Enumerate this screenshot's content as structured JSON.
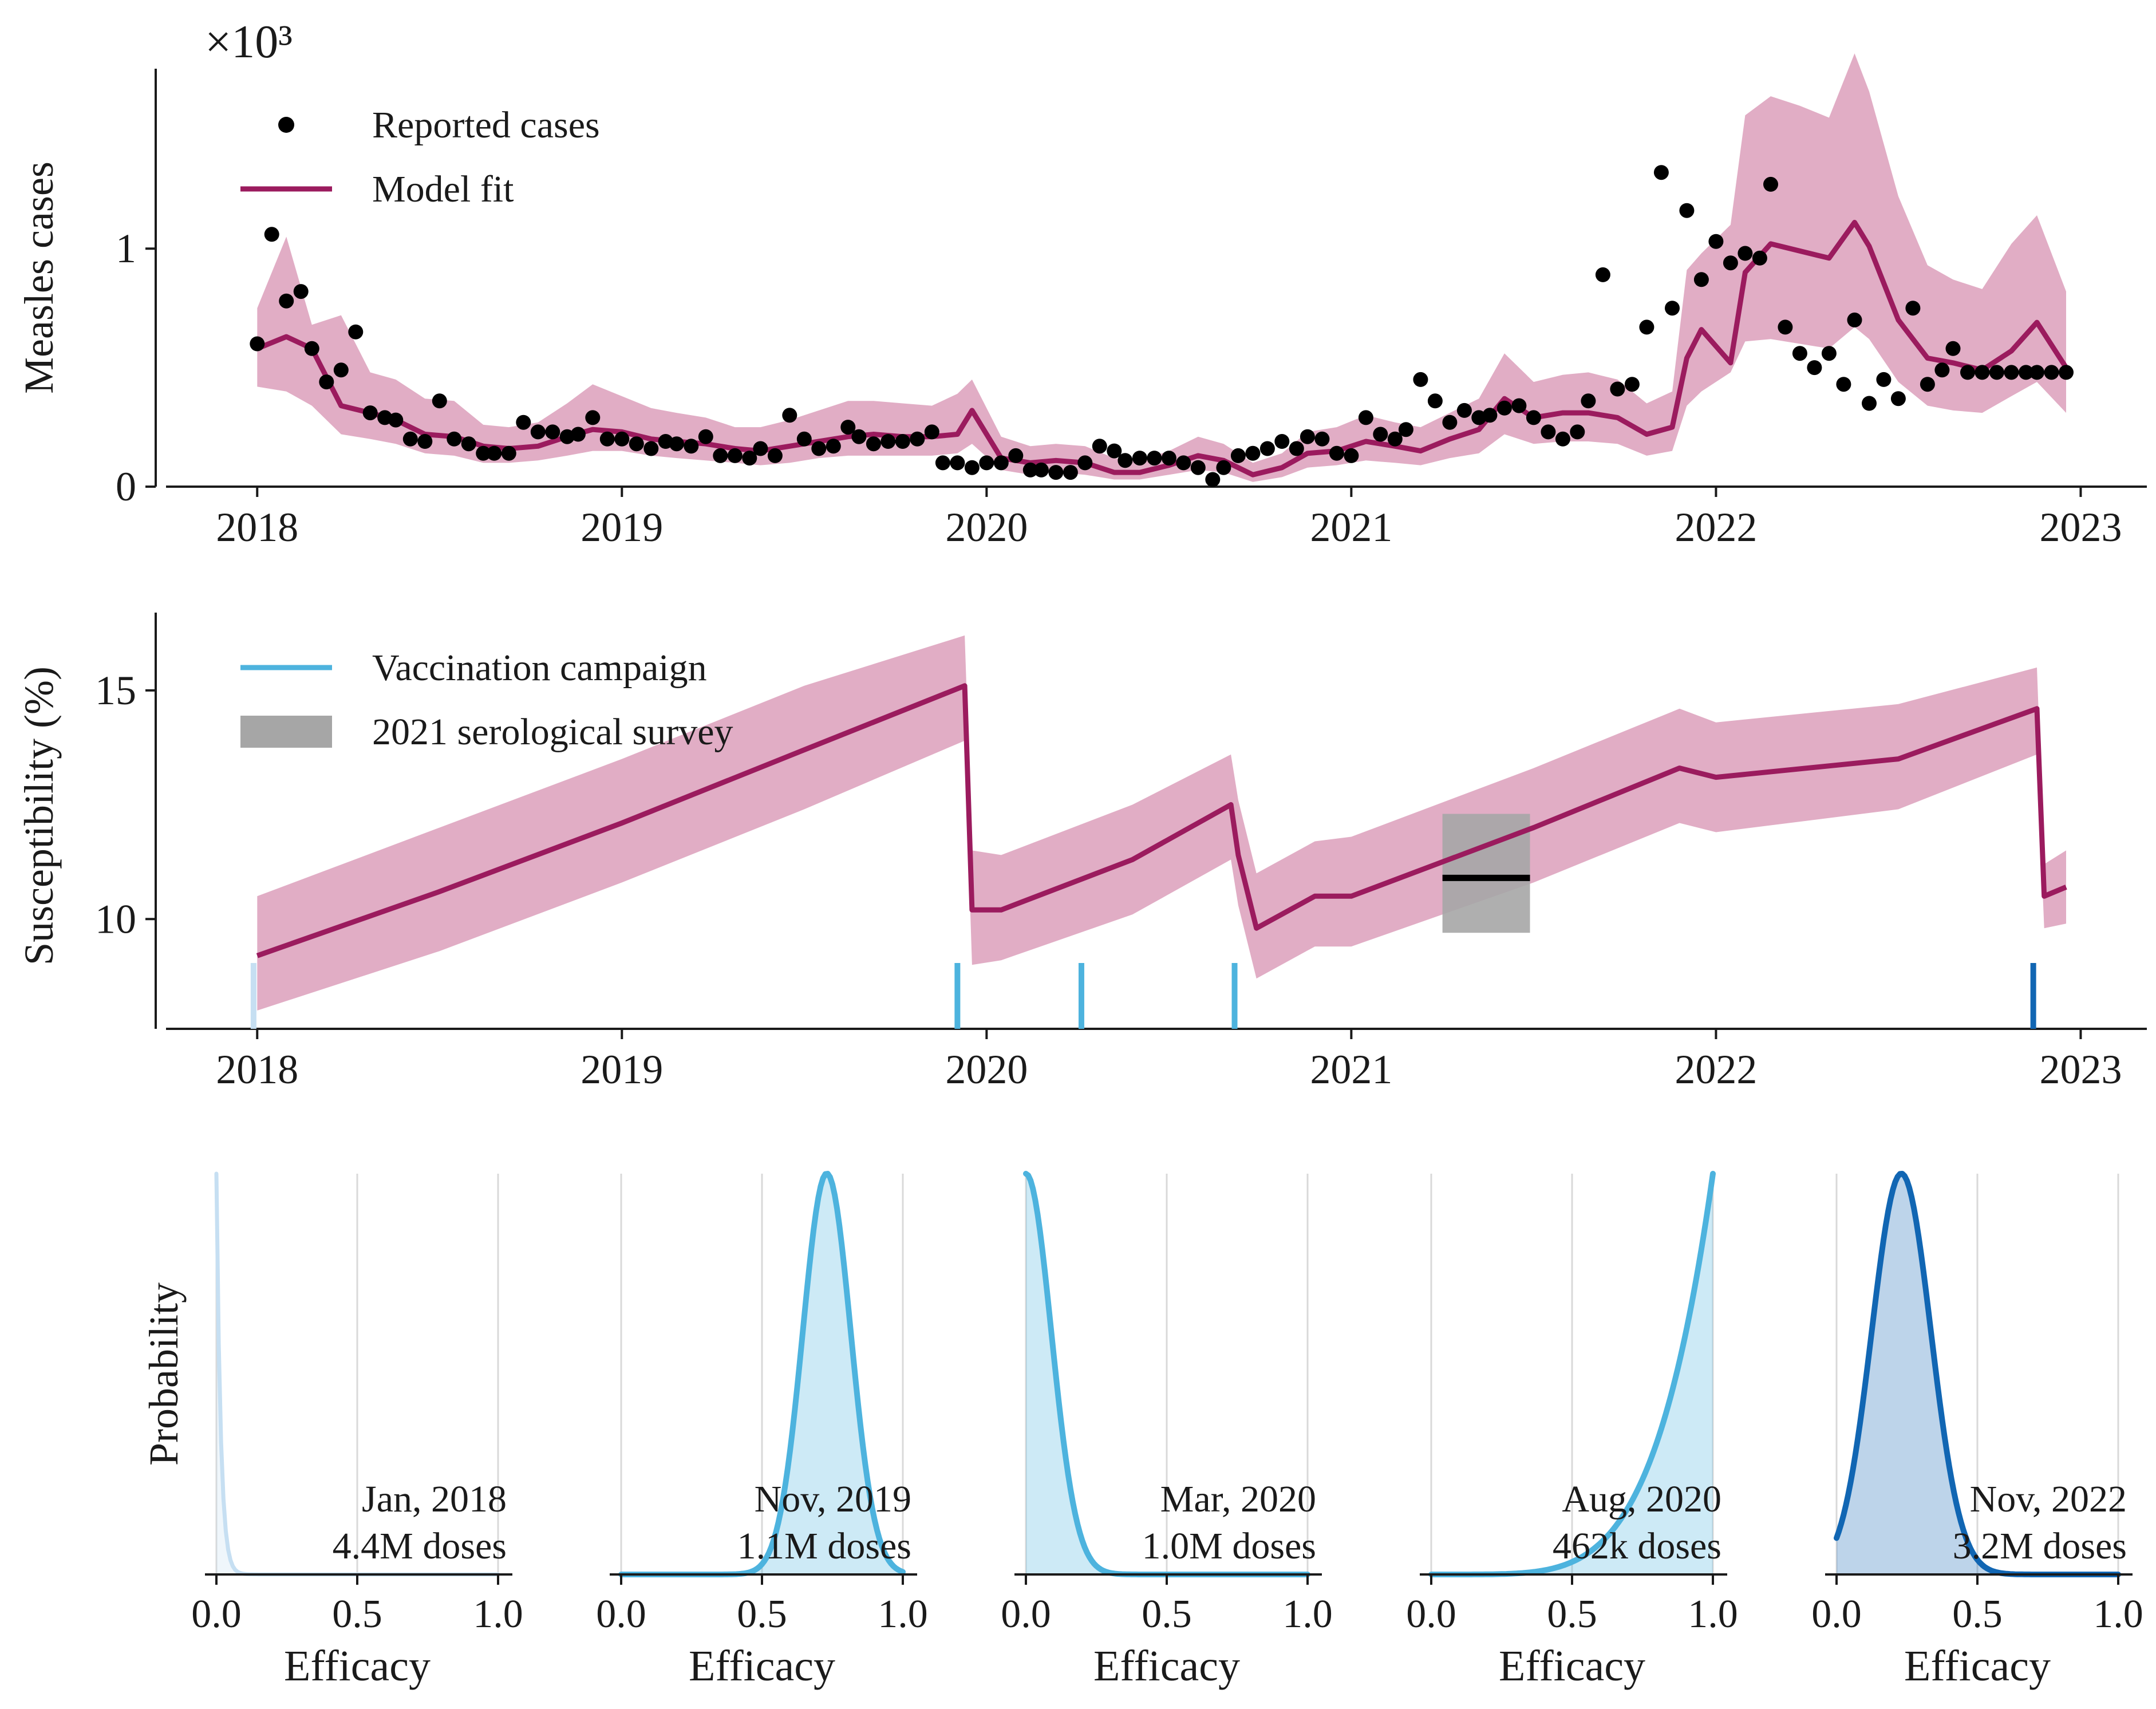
{
  "colors": {
    "model": "#9b1b5e",
    "band": "#dfa9c2",
    "dots": "#000000",
    "camp_light": "#c6dff2",
    "camp_mid": "#4db3de",
    "camp_dark": "#1166b3",
    "sero_box": "#a6a6a6",
    "axis": "#1a1a1a",
    "grid": "#d9d9d9"
  },
  "chart_data": [
    {
      "type": "line",
      "panel": "cases",
      "ylabel": "Measles cases",
      "y_multiplier": "×10³",
      "ylim": [
        0,
        1.9
      ],
      "xlim": [
        2017.75,
        2023.15
      ],
      "x_ticks": [
        2018,
        2019,
        2020,
        2021,
        2022,
        2023
      ],
      "x_tick_labels": [
        "2018",
        "2019",
        "2020",
        "2021",
        "2022",
        "2023"
      ],
      "y_ticks": [
        0,
        1
      ],
      "y_tick_labels": [
        "0",
        "1"
      ],
      "legend": {
        "position": "top-left",
        "entries": [
          "Reported cases",
          "Model fit"
        ]
      },
      "series": [
        {
          "name": "Reported cases",
          "kind": "scatter",
          "x": [
            2018.0,
            2018.04,
            2018.08,
            2018.12,
            2018.15,
            2018.19,
            2018.23,
            2018.27,
            2018.31,
            2018.35,
            2018.38,
            2018.42,
            2018.46,
            2018.5,
            2018.54,
            2018.58,
            2018.62,
            2018.65,
            2018.69,
            2018.73,
            2018.77,
            2018.81,
            2018.85,
            2018.88,
            2018.92,
            2018.96,
            2019.0,
            2019.04,
            2019.08,
            2019.12,
            2019.15,
            2019.19,
            2019.23,
            2019.27,
            2019.31,
            2019.35,
            2019.38,
            2019.42,
            2019.46,
            2019.5,
            2019.54,
            2019.58,
            2019.62,
            2019.65,
            2019.69,
            2019.73,
            2019.77,
            2019.81,
            2019.85,
            2019.88,
            2019.92,
            2019.96,
            2020.0,
            2020.04,
            2020.08,
            2020.12,
            2020.15,
            2020.19,
            2020.23,
            2020.27,
            2020.31,
            2020.35,
            2020.38,
            2020.42,
            2020.46,
            2020.5,
            2020.54,
            2020.58,
            2020.62,
            2020.65,
            2020.69,
            2020.73,
            2020.77,
            2020.81,
            2020.85,
            2020.88,
            2020.92,
            2020.96,
            2021.0,
            2021.04,
            2021.08,
            2021.12,
            2021.15,
            2021.19,
            2021.23,
            2021.27,
            2021.31,
            2021.35,
            2021.38,
            2021.42,
            2021.46,
            2021.5,
            2021.54,
            2021.58,
            2021.62,
            2021.65,
            2021.69,
            2021.73,
            2021.77,
            2021.81,
            2021.85,
            2021.88,
            2021.92,
            2021.96,
            2022.0,
            2022.04,
            2022.08,
            2022.12,
            2022.15,
            2022.19,
            2022.23,
            2022.27,
            2022.31,
            2022.35,
            2022.38,
            2022.42,
            2022.46,
            2022.5,
            2022.54,
            2022.58,
            2022.62,
            2022.65,
            2022.69,
            2022.73,
            2022.77,
            2022.81,
            2022.85,
            2022.88,
            2022.92,
            2022.96
          ],
          "y": [
            0.6,
            1.06,
            0.78,
            0.82,
            0.58,
            0.44,
            0.49,
            0.65,
            0.31,
            0.29,
            0.28,
            0.2,
            0.19,
            0.36,
            0.2,
            0.18,
            0.14,
            0.14,
            0.14,
            0.27,
            0.23,
            0.23,
            0.21,
            0.22,
            0.29,
            0.2,
            0.2,
            0.18,
            0.16,
            0.19,
            0.18,
            0.17,
            0.21,
            0.13,
            0.13,
            0.12,
            0.16,
            0.13,
            0.3,
            0.2,
            0.16,
            0.17,
            0.25,
            0.21,
            0.18,
            0.19,
            0.19,
            0.2,
            0.23,
            0.1,
            0.1,
            0.08,
            0.1,
            0.1,
            0.13,
            0.07,
            0.07,
            0.06,
            0.06,
            0.1,
            0.17,
            0.15,
            0.11,
            0.12,
            0.12,
            0.12,
            0.1,
            0.08,
            0.03,
            0.08,
            0.13,
            0.14,
            0.16,
            0.19,
            0.16,
            0.21,
            0.2,
            0.14,
            0.13,
            0.29,
            0.22,
            0.2,
            0.24,
            0.45,
            0.36,
            0.27,
            0.32,
            0.29,
            0.3,
            0.33,
            0.34,
            0.29,
            0.23,
            0.2,
            0.23,
            0.36,
            0.89,
            0.41,
            0.43,
            0.67,
            1.32,
            0.75,
            1.16,
            0.87,
            1.03,
            0.94,
            0.98,
            0.96,
            1.27,
            0.67,
            0.56,
            0.5,
            0.56,
            0.43,
            0.7,
            0.35,
            0.45,
            0.37,
            0.75,
            0.43,
            0.49,
            0.58,
            0.48,
            0.48,
            0.48,
            0.48,
            0.48,
            0.48,
            0.48,
            0.48
          ]
        },
        {
          "name": "Model fit",
          "kind": "line",
          "x": [
            2018.0,
            2018.08,
            2018.15,
            2018.23,
            2018.31,
            2018.38,
            2018.46,
            2018.54,
            2018.62,
            2018.69,
            2018.77,
            2018.85,
            2018.92,
            2019.0,
            2019.08,
            2019.15,
            2019.23,
            2019.31,
            2019.38,
            2019.46,
            2019.54,
            2019.62,
            2019.69,
            2019.77,
            2019.85,
            2019.92,
            2019.96,
            2020.04,
            2020.12,
            2020.19,
            2020.27,
            2020.35,
            2020.42,
            2020.5,
            2020.58,
            2020.65,
            2020.73,
            2020.81,
            2020.88,
            2020.96,
            2021.04,
            2021.12,
            2021.19,
            2021.27,
            2021.35,
            2021.42,
            2021.5,
            2021.58,
            2021.65,
            2021.73,
            2021.81,
            2021.88,
            2021.92,
            2021.96,
            2022.04,
            2022.08,
            2022.15,
            2022.23,
            2022.31,
            2022.38,
            2022.42,
            2022.5,
            2022.58,
            2022.65,
            2022.73,
            2022.81,
            2022.88,
            2022.96
          ],
          "y": [
            0.58,
            0.63,
            0.58,
            0.34,
            0.31,
            0.28,
            0.22,
            0.21,
            0.17,
            0.16,
            0.17,
            0.21,
            0.24,
            0.23,
            0.2,
            0.19,
            0.18,
            0.16,
            0.15,
            0.17,
            0.19,
            0.21,
            0.22,
            0.21,
            0.21,
            0.22,
            0.32,
            0.12,
            0.1,
            0.11,
            0.1,
            0.06,
            0.06,
            0.09,
            0.13,
            0.11,
            0.05,
            0.08,
            0.14,
            0.15,
            0.19,
            0.17,
            0.15,
            0.2,
            0.24,
            0.37,
            0.29,
            0.31,
            0.31,
            0.29,
            0.22,
            0.25,
            0.54,
            0.66,
            0.52,
            0.9,
            1.02,
            0.99,
            0.96,
            1.11,
            1.01,
            0.7,
            0.54,
            0.52,
            0.49,
            0.57,
            0.69,
            0.5
          ]
        }
      ],
      "band_upper": [
        0.75,
        1.05,
        0.68,
        0.72,
        0.48,
        0.45,
        0.37,
        0.36,
        0.26,
        0.25,
        0.27,
        0.35,
        0.43,
        0.38,
        0.33,
        0.31,
        0.29,
        0.25,
        0.25,
        0.28,
        0.32,
        0.36,
        0.36,
        0.35,
        0.34,
        0.39,
        0.45,
        0.21,
        0.17,
        0.18,
        0.17,
        0.12,
        0.11,
        0.15,
        0.21,
        0.18,
        0.1,
        0.14,
        0.23,
        0.25,
        0.3,
        0.27,
        0.25,
        0.31,
        0.37,
        0.56,
        0.44,
        0.47,
        0.48,
        0.45,
        0.35,
        0.4,
        0.91,
        0.98,
        1.1,
        1.56,
        1.64,
        1.6,
        1.55,
        1.82,
        1.66,
        1.22,
        0.93,
        0.87,
        0.83,
        1.02,
        1.14,
        0.82
      ],
      "band_lower": [
        0.42,
        0.4,
        0.34,
        0.22,
        0.2,
        0.18,
        0.14,
        0.13,
        0.1,
        0.1,
        0.11,
        0.13,
        0.15,
        0.15,
        0.13,
        0.12,
        0.11,
        0.1,
        0.09,
        0.1,
        0.12,
        0.13,
        0.13,
        0.13,
        0.13,
        0.14,
        0.18,
        0.07,
        0.05,
        0.06,
        0.05,
        0.03,
        0.03,
        0.05,
        0.07,
        0.06,
        0.02,
        0.04,
        0.08,
        0.09,
        0.11,
        0.1,
        0.09,
        0.12,
        0.14,
        0.22,
        0.18,
        0.19,
        0.19,
        0.18,
        0.13,
        0.15,
        0.34,
        0.4,
        0.48,
        0.61,
        0.62,
        0.6,
        0.58,
        0.67,
        0.62,
        0.44,
        0.34,
        0.32,
        0.31,
        0.38,
        0.44,
        0.31
      ]
    },
    {
      "type": "line",
      "panel": "susceptibility",
      "ylabel": "Susceptibility (%)",
      "ylim": [
        7.6,
        16.7
      ],
      "xlim": [
        2017.75,
        2023.15
      ],
      "x_ticks": [
        2018,
        2019,
        2020,
        2021,
        2022,
        2023
      ],
      "x_tick_labels": [
        "2018",
        "2019",
        "2020",
        "2021",
        "2022",
        "2023"
      ],
      "y_ticks": [
        10,
        15
      ],
      "y_tick_labels": [
        "10",
        "15"
      ],
      "legend": {
        "position": "top-left",
        "entries": [
          "Vaccination campaign",
          "2021 serological survey"
        ]
      },
      "series": [
        {
          "name": "",
          "kind": "line",
          "x": [
            2018.0,
            2018.5,
            2019.0,
            2019.5,
            2019.94,
            2019.96,
            2020.04,
            2020.4,
            2020.67,
            2020.69,
            2020.74,
            2020.9,
            2021.0,
            2021.5,
            2021.9,
            2022.0,
            2022.5,
            2022.88,
            2022.9,
            2022.96
          ],
          "y": [
            9.2,
            10.6,
            12.1,
            13.7,
            15.1,
            10.2,
            10.2,
            11.3,
            12.5,
            11.4,
            9.8,
            10.5,
            10.5,
            12.0,
            13.3,
            13.1,
            13.5,
            14.6,
            10.5,
            10.7
          ]
        }
      ],
      "band_upper": [
        10.5,
        12.0,
        13.5,
        15.1,
        16.2,
        11.5,
        11.4,
        12.5,
        13.6,
        12.6,
        11.0,
        11.7,
        11.8,
        13.3,
        14.6,
        14.3,
        14.7,
        15.5,
        11.2,
        11.5
      ],
      "band_lower": [
        8.0,
        9.3,
        10.8,
        12.4,
        13.9,
        9.0,
        9.1,
        10.1,
        11.3,
        10.3,
        8.7,
        9.4,
        9.4,
        10.8,
        12.1,
        11.9,
        12.4,
        13.6,
        9.8,
        9.9
      ],
      "campaigns": [
        {
          "x": 2017.99,
          "color": "camp_light"
        },
        {
          "x": 2019.92,
          "color": "camp_mid"
        },
        {
          "x": 2020.26,
          "color": "camp_mid"
        },
        {
          "x": 2020.68,
          "color": "camp_mid"
        },
        {
          "x": 2022.87,
          "color": "camp_dark"
        }
      ],
      "sero_survey": {
        "x0": 2021.25,
        "x1": 2021.49,
        "y0": 9.7,
        "y1": 12.3,
        "mean": 10.9
      }
    },
    {
      "type": "area",
      "panel": "efficacy",
      "ylabel": "Probability",
      "xlabel": "Efficacy",
      "x_ticks": [
        0.0,
        0.5,
        1.0
      ],
      "x_tick_labels": [
        "0.0",
        "0.5",
        "1.0"
      ],
      "subplots": [
        {
          "label_date": "Jan, 2018",
          "label_doses": "4.4M doses",
          "dist": "exp",
          "param": 0.015,
          "color": "camp_light"
        },
        {
          "label_date": "Nov, 2019",
          "label_doses": "1.1M doses",
          "dist": "normal",
          "mu": 0.73,
          "sigma": 0.085,
          "color": "camp_mid"
        },
        {
          "label_date": "Mar, 2020",
          "label_doses": "1.0M doses",
          "dist": "halfnormal",
          "mu": 0.0,
          "sigma": 0.09,
          "color": "camp_mid"
        },
        {
          "label_date": "Aug, 2020",
          "label_doses": "462k doses",
          "dist": "power",
          "k": 5,
          "color": "camp_mid"
        },
        {
          "label_date": "Nov, 2022",
          "label_doses": "3.2M doses",
          "dist": "normal",
          "mu": 0.23,
          "sigma": 0.105,
          "color": "camp_dark"
        }
      ]
    }
  ]
}
